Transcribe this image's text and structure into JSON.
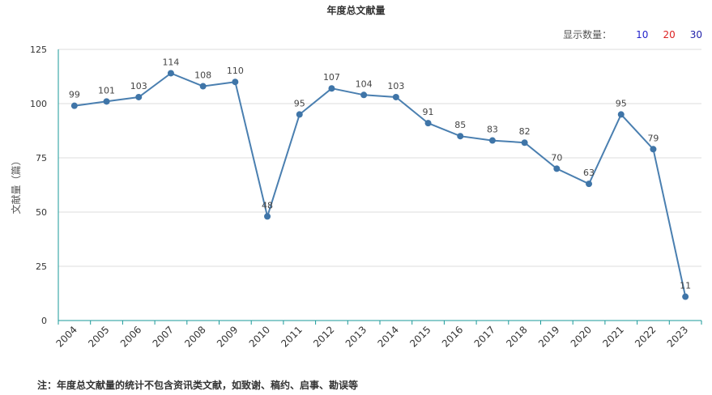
{
  "title": "年度总文献量",
  "show_count": {
    "label": "显示数量：",
    "options": [
      {
        "value": "10",
        "color": "#2222cc"
      },
      {
        "value": "20",
        "color": "#dd2222"
      },
      {
        "value": "30",
        "color": "#2222aa"
      }
    ]
  },
  "footnote": "注：年度总文献量的统计不包含资讯类文献，如致谢、稿约、启事、勘误等",
  "colors": {
    "line": "#4a7fb0",
    "point": "#3f75a8",
    "axis": "#1a9a9a",
    "grid": "#dddddd"
  },
  "chart_data": {
    "type": "line",
    "title": "年度总文献量",
    "xlabel": "",
    "ylabel": "文献量（篇）",
    "ylim": [
      0,
      125
    ],
    "yticks": [
      0,
      25,
      50,
      75,
      100,
      125
    ],
    "grid": true,
    "x": [
      "2004",
      "2005",
      "2006",
      "2007",
      "2008",
      "2009",
      "2010",
      "2011",
      "2012",
      "2013",
      "2014",
      "2015",
      "2016",
      "2017",
      "2018",
      "2019",
      "2020",
      "2021",
      "2022",
      "2023"
    ],
    "series": [
      {
        "values": [
          99,
          101,
          103,
          114,
          108,
          110,
          48,
          95,
          107,
          104,
          103,
          91,
          85,
          83,
          82,
          70,
          63,
          95,
          79,
          11
        ]
      }
    ]
  }
}
